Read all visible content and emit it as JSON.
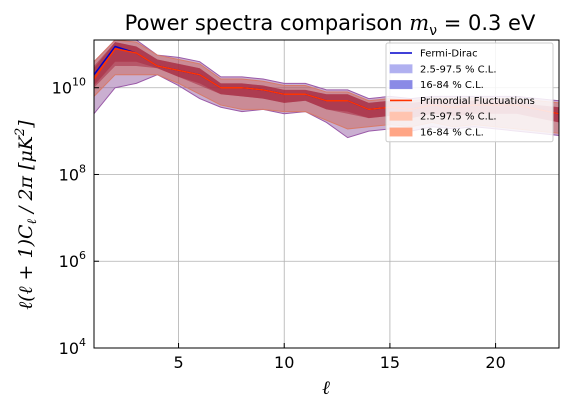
{
  "chart_data": {
    "type": "line",
    "title": "Power spectra comparison",
    "title_math": "m",
    "title_math_sub": "ν",
    "title_value": " = 0.3 eV",
    "xlabel": "ℓ",
    "ylabel": "ℓ(ℓ + 1)C",
    "ylabel_sub": "ℓ",
    "ylabel_tail": " / 2π [μK",
    "ylabel_sup": "2",
    "ylabel_close": "]",
    "xlim": [
      1,
      23
    ],
    "ylim_log10": [
      4,
      11.1
    ],
    "x_ticks": [
      5,
      10,
      15,
      20
    ],
    "x_tick_labels": [
      "5",
      "10",
      "15",
      "20"
    ],
    "y_ticks_log10": [
      4,
      6,
      8,
      10
    ],
    "y_tick_base": "10",
    "y_tick_exponents": [
      "4",
      "6",
      "8",
      "10"
    ],
    "grid": true,
    "legend_position": "top-right",
    "x": [
      1,
      2,
      3,
      4,
      5,
      6,
      7,
      8,
      9,
      10,
      11,
      12,
      13,
      14,
      15,
      16,
      17,
      18,
      19,
      20,
      21,
      22,
      23
    ],
    "series": [
      {
        "name": "Fermi-Dirac",
        "color": "#0000cc",
        "band_color": "#4b4bd6",
        "median_log10": [
          10.3,
          10.95,
          10.8,
          10.5,
          10.4,
          10.3,
          10.0,
          10.0,
          9.95,
          9.85,
          9.85,
          9.7,
          9.7,
          9.5,
          9.55,
          9.5,
          9.6,
          9.55,
          9.6,
          9.6,
          9.6,
          9.5,
          9.4
        ],
        "ci95_low_log10": [
          9.4,
          10.0,
          10.1,
          10.3,
          10.05,
          9.75,
          9.55,
          9.45,
          9.5,
          9.4,
          9.45,
          9.2,
          8.85,
          9.0,
          9.05,
          9.0,
          9.1,
          9.05,
          9.1,
          9.05,
          9.0,
          8.95,
          8.9
        ],
        "ci95_high_log10": [
          10.6,
          11.1,
          11.1,
          10.75,
          10.7,
          10.6,
          10.25,
          10.25,
          10.2,
          10.1,
          10.1,
          9.95,
          9.95,
          9.75,
          9.8,
          9.75,
          9.8,
          9.8,
          9.8,
          9.8,
          9.8,
          9.75,
          9.7
        ],
        "ci68_low_log10": [
          10.0,
          10.5,
          10.5,
          10.45,
          10.25,
          10.05,
          9.85,
          9.8,
          9.75,
          9.65,
          9.7,
          9.5,
          9.4,
          9.3,
          9.35,
          9.3,
          9.4,
          9.35,
          9.4,
          9.4,
          9.4,
          9.3,
          9.2
        ],
        "ci68_high_log10": [
          10.5,
          11.05,
          10.95,
          10.65,
          10.55,
          10.45,
          10.1,
          10.1,
          10.05,
          9.95,
          9.95,
          9.85,
          9.85,
          9.65,
          9.7,
          9.65,
          9.7,
          9.7,
          9.7,
          9.7,
          9.7,
          9.6,
          9.55
        ]
      },
      {
        "name": "Primordial Fluctuations",
        "color": "#ff3300",
        "band_color": "#ff7755",
        "median_log10": [
          10.2,
          10.9,
          10.8,
          10.5,
          10.4,
          10.3,
          10.0,
          10.0,
          9.95,
          9.85,
          9.85,
          9.7,
          9.7,
          9.5,
          9.55,
          9.5,
          9.6,
          9.55,
          9.6,
          9.6,
          9.6,
          9.5,
          9.4
        ],
        "ci95_low_log10": [
          9.8,
          10.3,
          10.3,
          10.3,
          10.1,
          9.85,
          9.6,
          9.5,
          9.5,
          9.45,
          9.45,
          9.25,
          9.05,
          9.1,
          9.15,
          9.1,
          9.2,
          9.1,
          9.15,
          9.1,
          9.05,
          9.0,
          8.95
        ],
        "ci95_high_log10": [
          10.6,
          11.1,
          11.05,
          10.75,
          10.65,
          10.55,
          10.2,
          10.2,
          10.15,
          10.05,
          10.05,
          9.9,
          9.9,
          9.7,
          9.75,
          9.7,
          9.75,
          9.75,
          9.75,
          9.75,
          9.75,
          9.7,
          9.65
        ],
        "ci68_low_log10": [
          10.05,
          10.6,
          10.6,
          10.45,
          10.25,
          10.1,
          9.85,
          9.8,
          9.75,
          9.65,
          9.7,
          9.5,
          9.45,
          9.3,
          9.35,
          9.3,
          9.4,
          9.35,
          9.4,
          9.4,
          9.4,
          9.3,
          9.2
        ],
        "ci68_high_log10": [
          10.45,
          11.05,
          10.95,
          10.65,
          10.55,
          10.45,
          10.1,
          10.1,
          10.05,
          9.95,
          9.95,
          9.85,
          9.85,
          9.65,
          9.7,
          9.65,
          9.7,
          9.7,
          9.7,
          9.7,
          9.7,
          9.6,
          9.55
        ]
      }
    ],
    "legend": [
      {
        "label": "Fermi-Dirac",
        "kind": "line",
        "color": "#0000cc"
      },
      {
        "label": "2.5-97.5 % C.L.",
        "kind": "patch",
        "color": "#b0b0f0"
      },
      {
        "label": "16-84 % C.L.",
        "kind": "patch",
        "color": "#8a8ae6"
      },
      {
        "label": "Primordial Fluctuations",
        "kind": "line",
        "color": "#ff3300"
      },
      {
        "label": "2.5-97.5 % C.L.",
        "kind": "patch",
        "color": "#ffc4b0"
      },
      {
        "label": "16-84 % C.L.",
        "kind": "patch",
        "color": "#ffa585"
      }
    ]
  }
}
